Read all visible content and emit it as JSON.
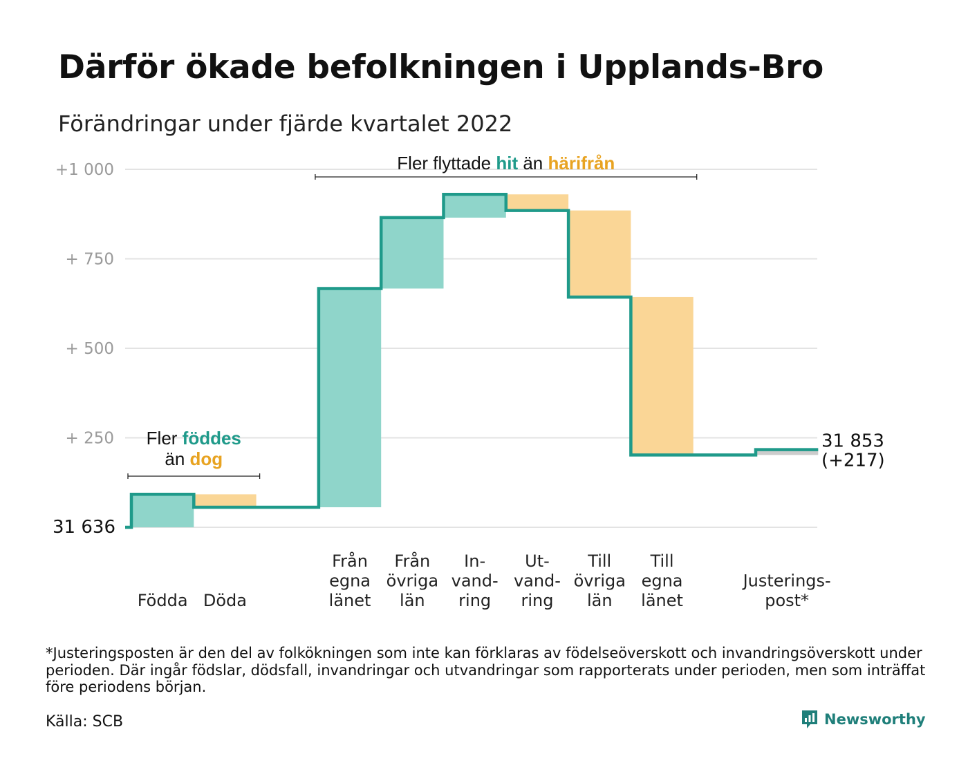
{
  "title": "Därför ökade befolkningen i Upplands-Bro",
  "subtitle": "Förändringar under fjärde kvartalet 2022",
  "colors": {
    "increase": "#8fd5ca",
    "decrease": "#fad696",
    "adjustment": "#cccccc",
    "line": "#1f9a8a",
    "grid": "#e3e3e3",
    "highlight_green": "#1f9a8a",
    "highlight_orange": "#e8a321"
  },
  "chart_data": {
    "type": "waterfall",
    "baseline_label": "31 636",
    "end_label": "31 853",
    "end_change_label": "(+217)",
    "y_ticks": [
      {
        "value": 0,
        "label": ""
      },
      {
        "value": 250,
        "label": "+ 250"
      },
      {
        "value": 500,
        "label": "+ 500"
      },
      {
        "value": 750,
        "label": "+ 750"
      },
      {
        "value": 1000,
        "label": "+1 000"
      }
    ],
    "ylim": [
      0,
      1000
    ],
    "steps": [
      {
        "label_lines": [
          "Födda"
        ],
        "change": 92,
        "kind": "increase"
      },
      {
        "label_lines": [
          "Döda"
        ],
        "change": -36,
        "kind": "decrease"
      },
      {
        "label_lines": [],
        "change": 0,
        "kind": "gap"
      },
      {
        "label_lines": [
          "Från",
          "egna",
          "länet"
        ],
        "change": 611,
        "kind": "increase"
      },
      {
        "label_lines": [
          "Från",
          "övriga",
          "län"
        ],
        "change": 198,
        "kind": "increase"
      },
      {
        "label_lines": [
          "In-",
          "vand-",
          "ring"
        ],
        "change": 65,
        "kind": "increase"
      },
      {
        "label_lines": [
          "Ut-",
          "vand-",
          "ring"
        ],
        "change": -45,
        "kind": "decrease"
      },
      {
        "label_lines": [
          "Till",
          "övriga",
          "län"
        ],
        "change": -242,
        "kind": "decrease"
      },
      {
        "label_lines": [
          "Till",
          "egna",
          "länet"
        ],
        "change": -441,
        "kind": "decrease"
      },
      {
        "label_lines": [],
        "change": 0,
        "kind": "gap"
      },
      {
        "label_lines": [
          "Justerings-",
          "post*"
        ],
        "change": 15,
        "kind": "adjustment"
      }
    ],
    "annotations": [
      {
        "id": "births",
        "line1": [
          {
            "text": "Fler ",
            "style": "plain"
          },
          {
            "text": "föddes",
            "style": "green"
          }
        ],
        "line2": [
          {
            "text": "än ",
            "style": "plain"
          },
          {
            "text": "dog",
            "style": "orange"
          }
        ],
        "span": [
          0,
          1
        ]
      },
      {
        "id": "migration",
        "line1": [
          {
            "text": "Fler flyttade ",
            "style": "plain"
          },
          {
            "text": "hit",
            "style": "green"
          },
          {
            "text": " än ",
            "style": "plain"
          },
          {
            "text": "härifrån",
            "style": "orange"
          }
        ],
        "span": [
          3,
          8
        ]
      }
    ]
  },
  "footnote": "*Justeringsposten är den del av folkökningen som inte kan förklaras av födelseöverskott och invandringsöverskott under perioden. Där ingår födslar, dödsfall, invandringar och utvandringar som rapporterats under perioden, men som inträffat före periodens början.",
  "source": "Källa: SCB",
  "brand": {
    "name": "Newsworthy",
    "icon": "newsworthy-logo-icon"
  }
}
